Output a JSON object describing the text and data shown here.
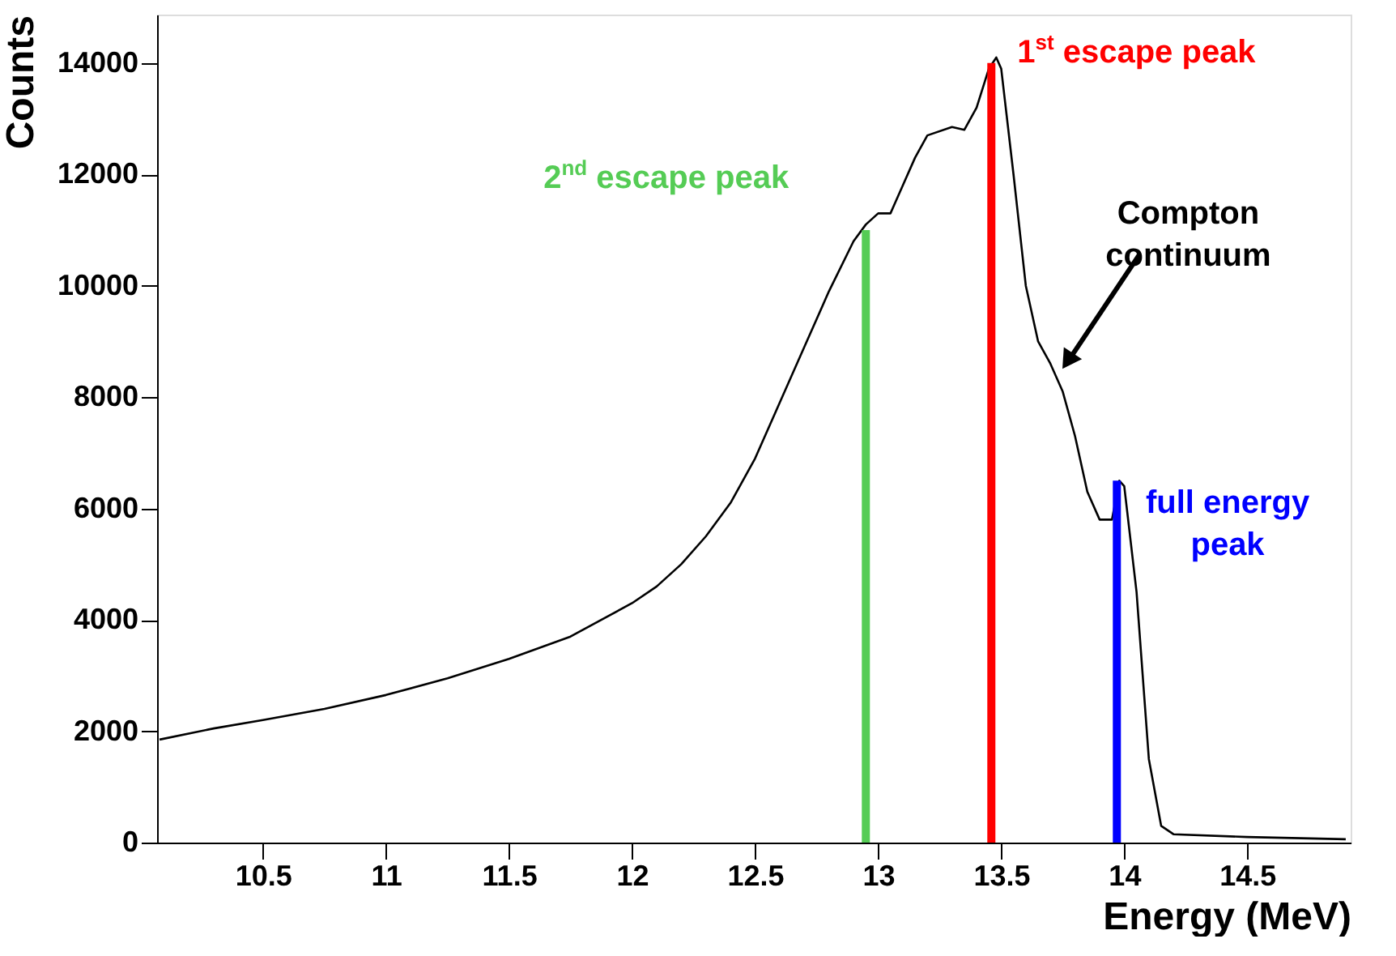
{
  "chart_data": {
    "type": "line",
    "xlabel": "Energy (MeV)",
    "ylabel": "Counts",
    "xlim": [
      10.07,
      14.92
    ],
    "ylim": [
      0,
      14870
    ],
    "xticks": [
      10.5,
      11,
      11.5,
      12,
      12.5,
      13,
      13.5,
      14,
      14.5
    ],
    "yticks": [
      0,
      2000,
      4000,
      6000,
      8000,
      10000,
      12000,
      14000
    ],
    "marker": "none",
    "line_style": "solid",
    "series": [
      {
        "color": "#000000",
        "x": [
          10.08,
          10.3,
          10.5,
          10.75,
          11.0,
          11.25,
          11.5,
          11.75,
          12.0,
          12.1,
          12.2,
          12.3,
          12.4,
          12.5,
          12.6,
          12.7,
          12.8,
          12.9,
          12.95,
          13.0,
          13.05,
          13.1,
          13.15,
          13.2,
          13.3,
          13.35,
          13.4,
          13.45,
          13.48,
          13.5,
          13.55,
          13.6,
          13.65,
          13.7,
          13.75,
          13.8,
          13.85,
          13.9,
          13.95,
          13.98,
          14.0,
          14.05,
          14.1,
          14.15,
          14.2,
          14.5,
          14.9
        ],
        "values": [
          1850,
          2050,
          2200,
          2400,
          2650,
          2950,
          3300,
          3700,
          4300,
          4600,
          5000,
          5500,
          6100,
          6900,
          7900,
          8900,
          9900,
          10800,
          11100,
          11300,
          11300,
          11800,
          12300,
          12700,
          12850,
          12800,
          13200,
          13900,
          14100,
          13900,
          12000,
          10000,
          9000,
          8600,
          8100,
          7300,
          6300,
          5800,
          5800,
          6500,
          6400,
          4500,
          1500,
          300,
          150,
          100,
          60
        ]
      },
      {
        "name": "2$^{nd}$ escape peak",
        "color": "#55cc55",
        "x": [
          12.95,
          12.95
        ],
        "values": [
          0,
          11000
        ]
      },
      {
        "name": "1$^{st}$ escape peak",
        "color": "#ff0000",
        "x": [
          13.46,
          13.46
        ],
        "values": [
          0,
          14000
        ]
      },
      {
        "name": "full energy peak",
        "color": "#0000ff",
        "x": [
          13.97,
          13.97
        ],
        "values": [
          0,
          6500
        ]
      }
    ],
    "annotations": [
      {
        "text": "Compton continuum",
        "x": 13.75,
        "y": 8500
      }
    ]
  }
}
